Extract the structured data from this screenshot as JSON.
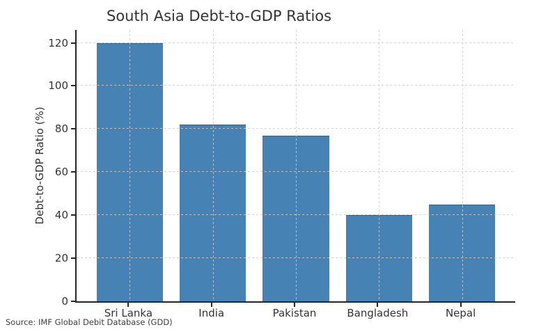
{
  "chart_data": {
    "type": "bar",
    "title": "South Asia Debt-to-GDP Ratios",
    "xlabel": "",
    "ylabel": "Debt-to-GDP Ratio (%)",
    "categories": [
      "Sri Lanka",
      "India",
      "Pakistan",
      "Bangladesh",
      "Nepal"
    ],
    "values": [
      120,
      82,
      77,
      40,
      45
    ],
    "yticks": [
      0,
      20,
      40,
      60,
      80,
      100,
      120
    ],
    "ylim": [
      0,
      126
    ],
    "grid": "dashed-both-axes-over-bars",
    "legend": "none",
    "colors": {
      "bar": "#4682B4",
      "grid": "#cccccc",
      "axis": "#262626",
      "text": "#333333"
    }
  },
  "source_note": "Source: IMF Global Debit Database (GDD)"
}
